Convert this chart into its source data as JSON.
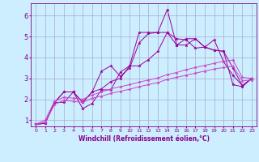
{
  "background_color": "#cceeff",
  "grid_color": "#aaaacc",
  "line_color_main": "#990099",
  "line_color_trend": "#cc44cc",
  "xlabel": "Windchill (Refroidissement éolien,°C)",
  "xlim": [
    -0.5,
    23.5
  ],
  "ylim": [
    0.7,
    6.6
  ],
  "yticks": [
    1,
    2,
    3,
    4,
    5,
    6
  ],
  "xticks": [
    0,
    1,
    2,
    3,
    4,
    5,
    6,
    7,
    8,
    9,
    10,
    11,
    12,
    13,
    14,
    15,
    16,
    17,
    18,
    19,
    20,
    21,
    22,
    23
  ],
  "series": [
    [
      0.8,
      0.85,
      1.85,
      1.85,
      2.35,
      1.55,
      1.8,
      2.45,
      2.45,
      3.3,
      3.6,
      5.2,
      5.2,
      5.2,
      6.3,
      4.6,
      4.6,
      4.9,
      4.5,
      4.35,
      4.3,
      2.7,
      2.6,
      3.0
    ],
    [
      0.8,
      0.85,
      1.85,
      2.35,
      2.35,
      1.85,
      2.35,
      3.35,
      3.6,
      3.1,
      3.5,
      4.7,
      5.15,
      5.2,
      5.2,
      4.9,
      4.85,
      4.45,
      4.5,
      4.85,
      3.8,
      3.15,
      2.65,
      3.0
    ],
    [
      0.8,
      0.85,
      1.85,
      2.35,
      2.35,
      1.85,
      2.35,
      2.5,
      2.85,
      3.0,
      3.6,
      3.6,
      3.9,
      4.3,
      5.2,
      4.6,
      4.9,
      4.9,
      4.5,
      4.35,
      4.3,
      3.5,
      2.65,
      3.0
    ],
    [
      0.8,
      1.0,
      1.9,
      2.1,
      2.05,
      2.0,
      2.2,
      2.35,
      2.5,
      2.6,
      2.7,
      2.82,
      2.92,
      3.02,
      3.18,
      3.28,
      3.42,
      3.52,
      3.62,
      3.72,
      3.82,
      3.88,
      3.05,
      3.0
    ],
    [
      0.8,
      0.9,
      1.75,
      1.95,
      1.9,
      1.85,
      2.05,
      2.15,
      2.28,
      2.38,
      2.48,
      2.6,
      2.7,
      2.8,
      2.95,
      3.05,
      3.15,
      3.25,
      3.35,
      3.45,
      3.52,
      3.58,
      2.88,
      2.92
    ]
  ]
}
